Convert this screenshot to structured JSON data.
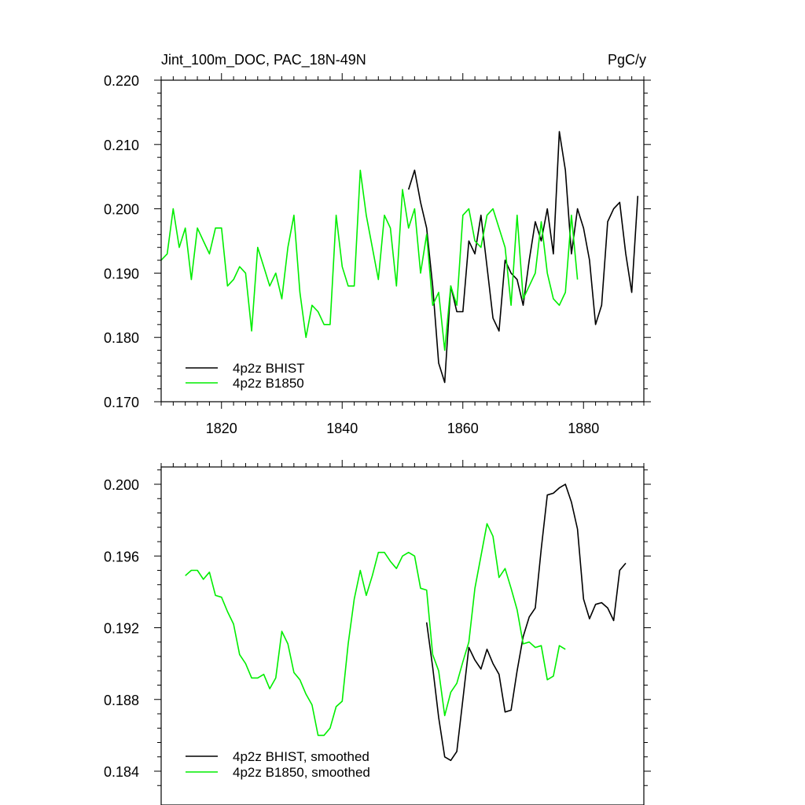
{
  "colors": {
    "bhist": "#000000",
    "b1850": "#00ee00"
  },
  "chart_data": [
    {
      "type": "line",
      "title": "Jint_100m_DOC, PAC_18N-49N",
      "units": "PgC/y",
      "xlim": [
        1810,
        1890
      ],
      "ylim": [
        0.17,
        0.22
      ],
      "xticks": [
        1820,
        1840,
        1860,
        1880
      ],
      "xtick_labels": [
        "1820",
        "1840",
        "1860",
        "1880"
      ],
      "yticks": [
        0.17,
        0.18,
        0.19,
        0.2,
        0.21,
        0.22
      ],
      "ytick_labels": [
        "0.170",
        "0.180",
        "0.190",
        "0.200",
        "0.210",
        "0.220"
      ],
      "legend_position": "bottom-left",
      "series": [
        {
          "name": "4p2z BHIST",
          "color": "#000000",
          "x": [
            1851,
            1852,
            1853,
            1854,
            1855,
            1856,
            1857,
            1858,
            1859,
            1860,
            1861,
            1862,
            1863,
            1864,
            1865,
            1866,
            1867,
            1868,
            1869,
            1870,
            1871,
            1872,
            1873,
            1874,
            1875,
            1876,
            1877,
            1878,
            1879,
            1880,
            1881,
            1882,
            1883,
            1884,
            1885,
            1886,
            1887,
            1888,
            1889
          ],
          "y": [
            0.203,
            0.206,
            0.201,
            0.197,
            0.188,
            0.176,
            0.173,
            0.188,
            0.184,
            0.184,
            0.195,
            0.193,
            0.199,
            0.191,
            0.183,
            0.181,
            0.192,
            0.19,
            0.189,
            0.185,
            0.192,
            0.198,
            0.195,
            0.2,
            0.193,
            0.212,
            0.206,
            0.193,
            0.2,
            0.197,
            0.192,
            0.182,
            0.185,
            0.198,
            0.2,
            0.201,
            0.193,
            0.187,
            0.202
          ]
        },
        {
          "name": "4p2z B1850",
          "color": "#00ee00",
          "x": [
            1810,
            1811,
            1812,
            1813,
            1814,
            1815,
            1816,
            1817,
            1818,
            1819,
            1820,
            1821,
            1822,
            1823,
            1824,
            1825,
            1826,
            1827,
            1828,
            1829,
            1830,
            1831,
            1832,
            1833,
            1834,
            1835,
            1836,
            1837,
            1838,
            1839,
            1840,
            1841,
            1842,
            1843,
            1844,
            1845,
            1846,
            1847,
            1848,
            1849,
            1850,
            1851,
            1852,
            1853,
            1854,
            1855,
            1856,
            1857,
            1858,
            1859,
            1860,
            1861,
            1862,
            1863,
            1864,
            1865,
            1866,
            1867,
            1868,
            1869,
            1870,
            1871,
            1872,
            1873,
            1874,
            1875,
            1876,
            1877,
            1878,
            1879
          ],
          "y": [
            0.192,
            0.193,
            0.2,
            0.194,
            0.197,
            0.189,
            0.197,
            0.195,
            0.193,
            0.197,
            0.197,
            0.188,
            0.189,
            0.191,
            0.19,
            0.181,
            0.194,
            0.191,
            0.188,
            0.19,
            0.186,
            0.194,
            0.199,
            0.187,
            0.18,
            0.185,
            0.184,
            0.182,
            0.182,
            0.199,
            0.191,
            0.188,
            0.188,
            0.206,
            0.199,
            0.194,
            0.189,
            0.199,
            0.197,
            0.188,
            0.203,
            0.197,
            0.2,
            0.19,
            0.196,
            0.185,
            0.187,
            0.178,
            0.188,
            0.185,
            0.199,
            0.2,
            0.195,
            0.194,
            0.199,
            0.2,
            0.197,
            0.194,
            0.185,
            0.199,
            0.186,
            0.188,
            0.19,
            0.198,
            0.19,
            0.186,
            0.185,
            0.187,
            0.199,
            0.189
          ]
        }
      ]
    },
    {
      "type": "line",
      "title": "",
      "xlim": [
        1810,
        1890
      ],
      "ylim": [
        0.183,
        0.201
      ],
      "xticks": [
        1820,
        1840,
        1860,
        1880
      ],
      "xtick_labels": [],
      "yticks": [
        0.184,
        0.188,
        0.192,
        0.196,
        0.2
      ],
      "ytick_labels": [
        "0.184",
        "0.188",
        "0.192",
        "0.196",
        "0.200"
      ],
      "legend_position": "bottom-left",
      "series": [
        {
          "name": "4p2z BHIST, smoothed",
          "color": "#000000",
          "x": [
            1854,
            1855,
            1856,
            1857,
            1858,
            1859,
            1860,
            1861,
            1862,
            1863,
            1864,
            1865,
            1866,
            1867,
            1868,
            1869,
            1870,
            1871,
            1872,
            1873,
            1874,
            1875,
            1876,
            1877,
            1878,
            1879,
            1880,
            1881,
            1882,
            1883,
            1884,
            1885,
            1886,
            1887
          ],
          "y": [
            0.1923,
            0.1898,
            0.187,
            0.1848,
            0.1846,
            0.1851,
            0.188,
            0.1909,
            0.1902,
            0.1897,
            0.1908,
            0.19,
            0.1894,
            0.1873,
            0.1874,
            0.1896,
            0.1915,
            0.1926,
            0.1931,
            0.1964,
            0.1994,
            0.1995,
            0.1998,
            0.2,
            0.199,
            0.1975,
            0.1936,
            0.1925,
            0.1933,
            0.1934,
            0.1931,
            0.1924,
            0.1952,
            0.1956
          ]
        },
        {
          "name": "4p2z B1850, smoothed",
          "color": "#00ee00",
          "x": [
            1814,
            1815,
            1816,
            1817,
            1818,
            1819,
            1820,
            1821,
            1822,
            1823,
            1824,
            1825,
            1826,
            1827,
            1828,
            1829,
            1830,
            1831,
            1832,
            1833,
            1834,
            1835,
            1836,
            1837,
            1838,
            1839,
            1840,
            1841,
            1842,
            1843,
            1844,
            1845,
            1846,
            1847,
            1848,
            1849,
            1850,
            1851,
            1852,
            1853,
            1854,
            1855,
            1856,
            1857,
            1858,
            1859,
            1860,
            1861,
            1862,
            1863,
            1864,
            1865,
            1866,
            1867,
            1868,
            1869,
            1870,
            1871,
            1872,
            1873,
            1874,
            1875,
            1876,
            1877
          ],
          "y": [
            0.1949,
            0.1952,
            0.1952,
            0.1947,
            0.1951,
            0.1938,
            0.1937,
            0.1929,
            0.1922,
            0.1905,
            0.19,
            0.1892,
            0.1892,
            0.1894,
            0.1886,
            0.1892,
            0.1918,
            0.1911,
            0.1895,
            0.1891,
            0.1883,
            0.1877,
            0.186,
            0.186,
            0.1864,
            0.1876,
            0.1879,
            0.1911,
            0.1936,
            0.1952,
            0.1938,
            0.1949,
            0.1962,
            0.1962,
            0.1957,
            0.1953,
            0.196,
            0.1962,
            0.196,
            0.1942,
            0.1941,
            0.1905,
            0.1896,
            0.1871,
            0.1884,
            0.1889,
            0.1901,
            0.1912,
            0.1942,
            0.196,
            0.1978,
            0.1971,
            0.1948,
            0.1953,
            0.1942,
            0.193,
            0.1911,
            0.1912,
            0.1909,
            0.191,
            0.1891,
            0.1893,
            0.191,
            0.1908
          ]
        }
      ]
    }
  ]
}
